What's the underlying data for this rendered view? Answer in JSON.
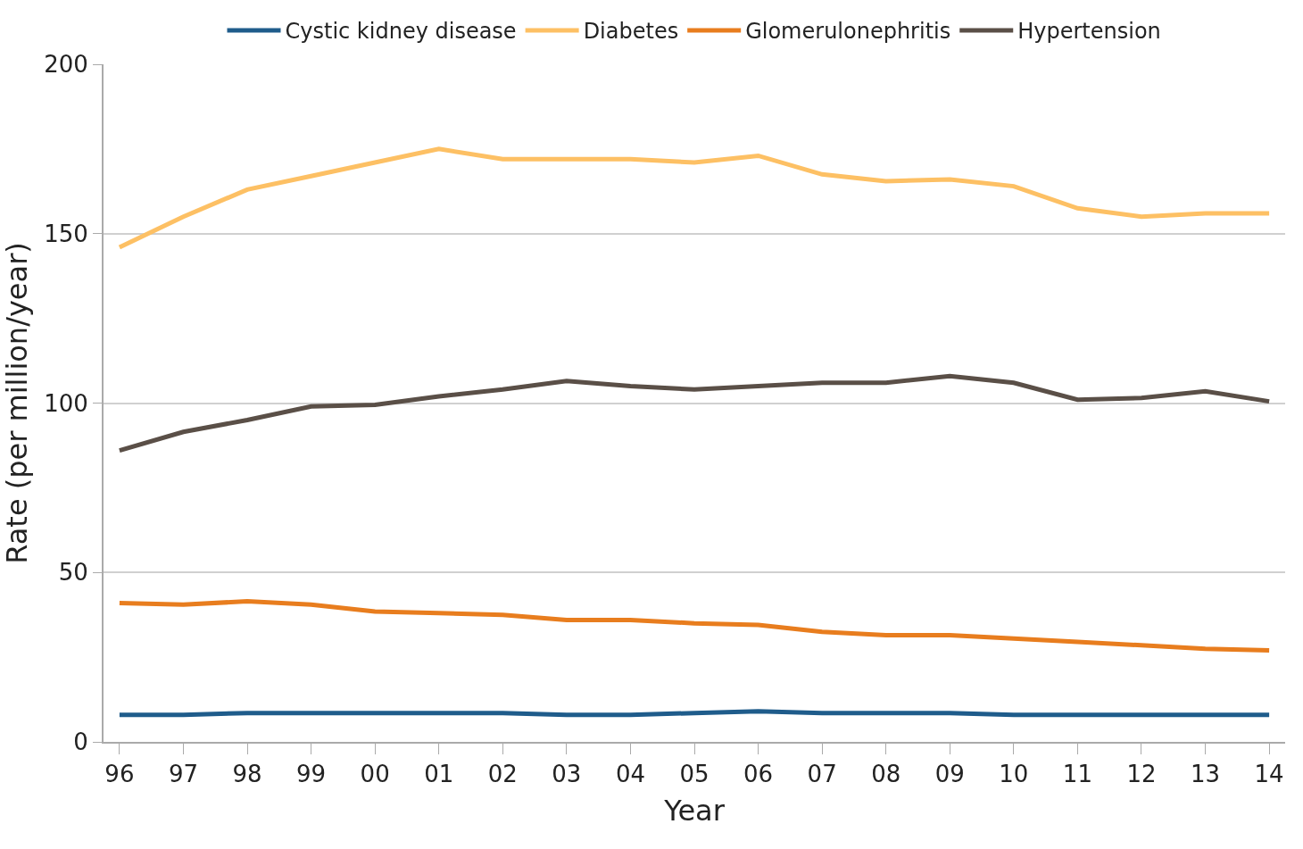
{
  "chart_data": {
    "type": "line",
    "xlabel": "Year",
    "ylabel": "Rate (per million/year)",
    "categories": [
      "96",
      "97",
      "98",
      "99",
      "00",
      "01",
      "02",
      "03",
      "04",
      "05",
      "06",
      "07",
      "08",
      "09",
      "10",
      "11",
      "12",
      "13",
      "14"
    ],
    "series": [
      {
        "name": "Cystic kidney disease",
        "color": "#1f5c8b",
        "values": [
          8,
          8,
          8.5,
          8.5,
          8.5,
          8.5,
          8.5,
          8,
          8,
          8.5,
          9,
          8.5,
          8.5,
          8.5,
          8,
          8,
          8,
          8,
          8
        ]
      },
      {
        "name": "Diabetes",
        "color": "#fdc064",
        "values": [
          146,
          155,
          163,
          167,
          171,
          175,
          172,
          172,
          172,
          171,
          173,
          167.5,
          165.5,
          166,
          164,
          157.5,
          155,
          156,
          156
        ]
      },
      {
        "name": "Glomerulonephritis",
        "color": "#e87d1e",
        "values": [
          41,
          40.5,
          41.5,
          40.5,
          38.5,
          38,
          37.5,
          36,
          36,
          35,
          34.5,
          32.5,
          31.5,
          31.5,
          30.5,
          29.5,
          28.5,
          27.5,
          27
        ]
      },
      {
        "name": "Hypertension",
        "color": "#5a4f47",
        "values": [
          86,
          91.5,
          95,
          99,
          99.5,
          102,
          104,
          106.5,
          105,
          104,
          105,
          106,
          106,
          108,
          106,
          101,
          101.5,
          103.5,
          100.5
        ]
      }
    ],
    "ylim": [
      0,
      200
    ],
    "yticks": [
      0,
      50,
      100,
      150,
      200
    ],
    "grid": "y",
    "legend": "top",
    "marker": "none",
    "line_style": "solid"
  }
}
